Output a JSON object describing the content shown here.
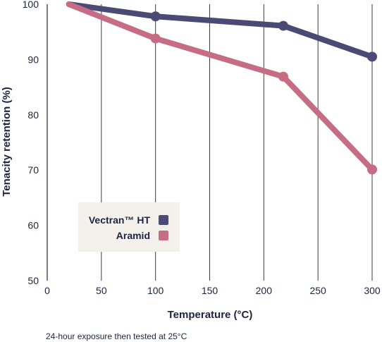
{
  "chart_data": {
    "type": "line",
    "xlabel": "Temperature (°C)",
    "ylabel": "Tenacity retention (%)",
    "note": "24-hour exposure then tested at 25°C",
    "xlim": [
      0,
      300
    ],
    "ylim": [
      50,
      100
    ],
    "xticks": [
      0,
      50,
      100,
      150,
      200,
      250,
      300
    ],
    "yticks": [
      50,
      60,
      70,
      80,
      90,
      100
    ],
    "grid": "vertical",
    "legend_position": "lower-left",
    "series": [
      {
        "name": "Vectran™ HT",
        "color": "#4b4a74",
        "points": [
          [
            20,
            100
          ],
          [
            100,
            97.8
          ],
          [
            218,
            96.1
          ],
          [
            300,
            90.5
          ]
        ]
      },
      {
        "name": "Aramid",
        "color": "#c66c84",
        "points": [
          [
            20,
            100
          ],
          [
            100,
            93.8
          ],
          [
            218,
            86.9
          ],
          [
            300,
            70.1
          ]
        ]
      }
    ]
  }
}
